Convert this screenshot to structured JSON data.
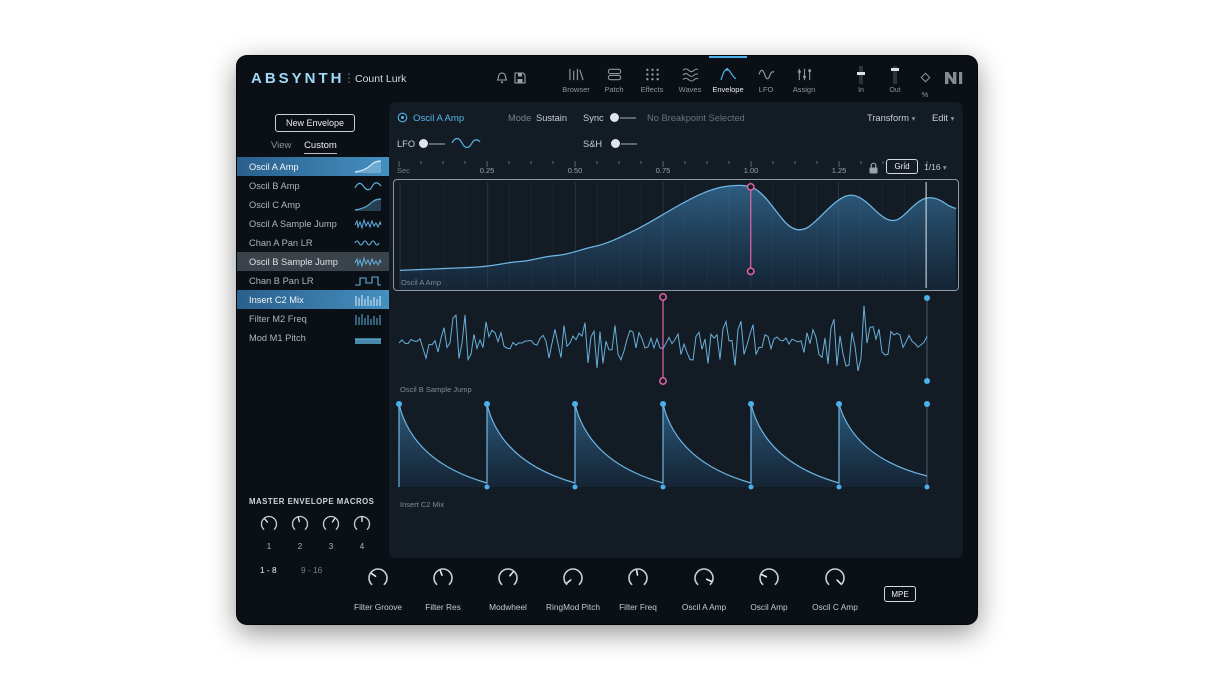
{
  "colors": {
    "accent": "#4db2ea",
    "pink": "#e863a6",
    "logo_blue": "#9fd9f6",
    "curve_blue": "#6db5e2"
  },
  "icons": {
    "caret_down": "▾",
    "separator": "⋮"
  },
  "header": {
    "logo": "ABSYNTH",
    "patch_name": "Count Lurk",
    "nav": [
      {
        "label": "Browser"
      },
      {
        "label": "Patch"
      },
      {
        "label": "Effects"
      },
      {
        "label": "Waves"
      },
      {
        "label": "Envelope"
      },
      {
        "label": "LFO"
      },
      {
        "label": "Assign"
      }
    ],
    "in_label": "In",
    "out_label": "Out",
    "percent_label": "%"
  },
  "sidebar": {
    "new_envelope_button": "New Envelope",
    "view_tab": "View",
    "custom_tab": "Custom",
    "envelopes": [
      {
        "label": "Oscil A Amp"
      },
      {
        "label": "Oscil B Amp"
      },
      {
        "label": "Oscil C Amp"
      },
      {
        "label": "Oscil A Sample Jump"
      },
      {
        "label": "Chan A Pan LR"
      },
      {
        "label": "Oscil B Sample Jump"
      },
      {
        "label": "Chan B Pan LR"
      },
      {
        "label": "Insert C2 Mix"
      },
      {
        "label": "Filter M2 Freq"
      },
      {
        "label": "Mod M1 Pitch"
      }
    ],
    "macros_title": "MASTER ENVELOPE MACROS",
    "macro_knobs": [
      "1",
      "2",
      "3",
      "4"
    ]
  },
  "envelope_panel": {
    "selected_name": "Oscil A Amp",
    "mode_label": "Mode",
    "mode_value": "Sustain",
    "sync_label": "Sync",
    "breakpoint_status": "No Breakpoint Selected",
    "transform_label": "Transform",
    "edit_label": "Edit",
    "lfo_label": "LFO",
    "sh_label": "S&H",
    "ruler_unit": "Sec",
    "ruler_ticks": [
      "0.25",
      "0.50",
      "0.75",
      "1.00",
      "1.25"
    ],
    "grid_button": "Grid",
    "grid_value": "1/16",
    "lanes": [
      {
        "label": "Oscil A Amp"
      },
      {
        "label": "Oscil B Sample Jump"
      },
      {
        "label": "Insert C2 Mix"
      }
    ]
  },
  "bottom": {
    "bank_tab_1": "1 - 8",
    "bank_tab_2": "9 - 16",
    "knobs": [
      {
        "label": "Filter Groove"
      },
      {
        "label": "Filter Res"
      },
      {
        "label": "Modwheel"
      },
      {
        "label": "RingMod Pitch"
      },
      {
        "label": "Filter Freq"
      },
      {
        "label": "Oscil A Amp"
      },
      {
        "label": "Oscil Amp"
      },
      {
        "label": "Oscil C Amp"
      }
    ],
    "mpe_button": "MPE"
  }
}
